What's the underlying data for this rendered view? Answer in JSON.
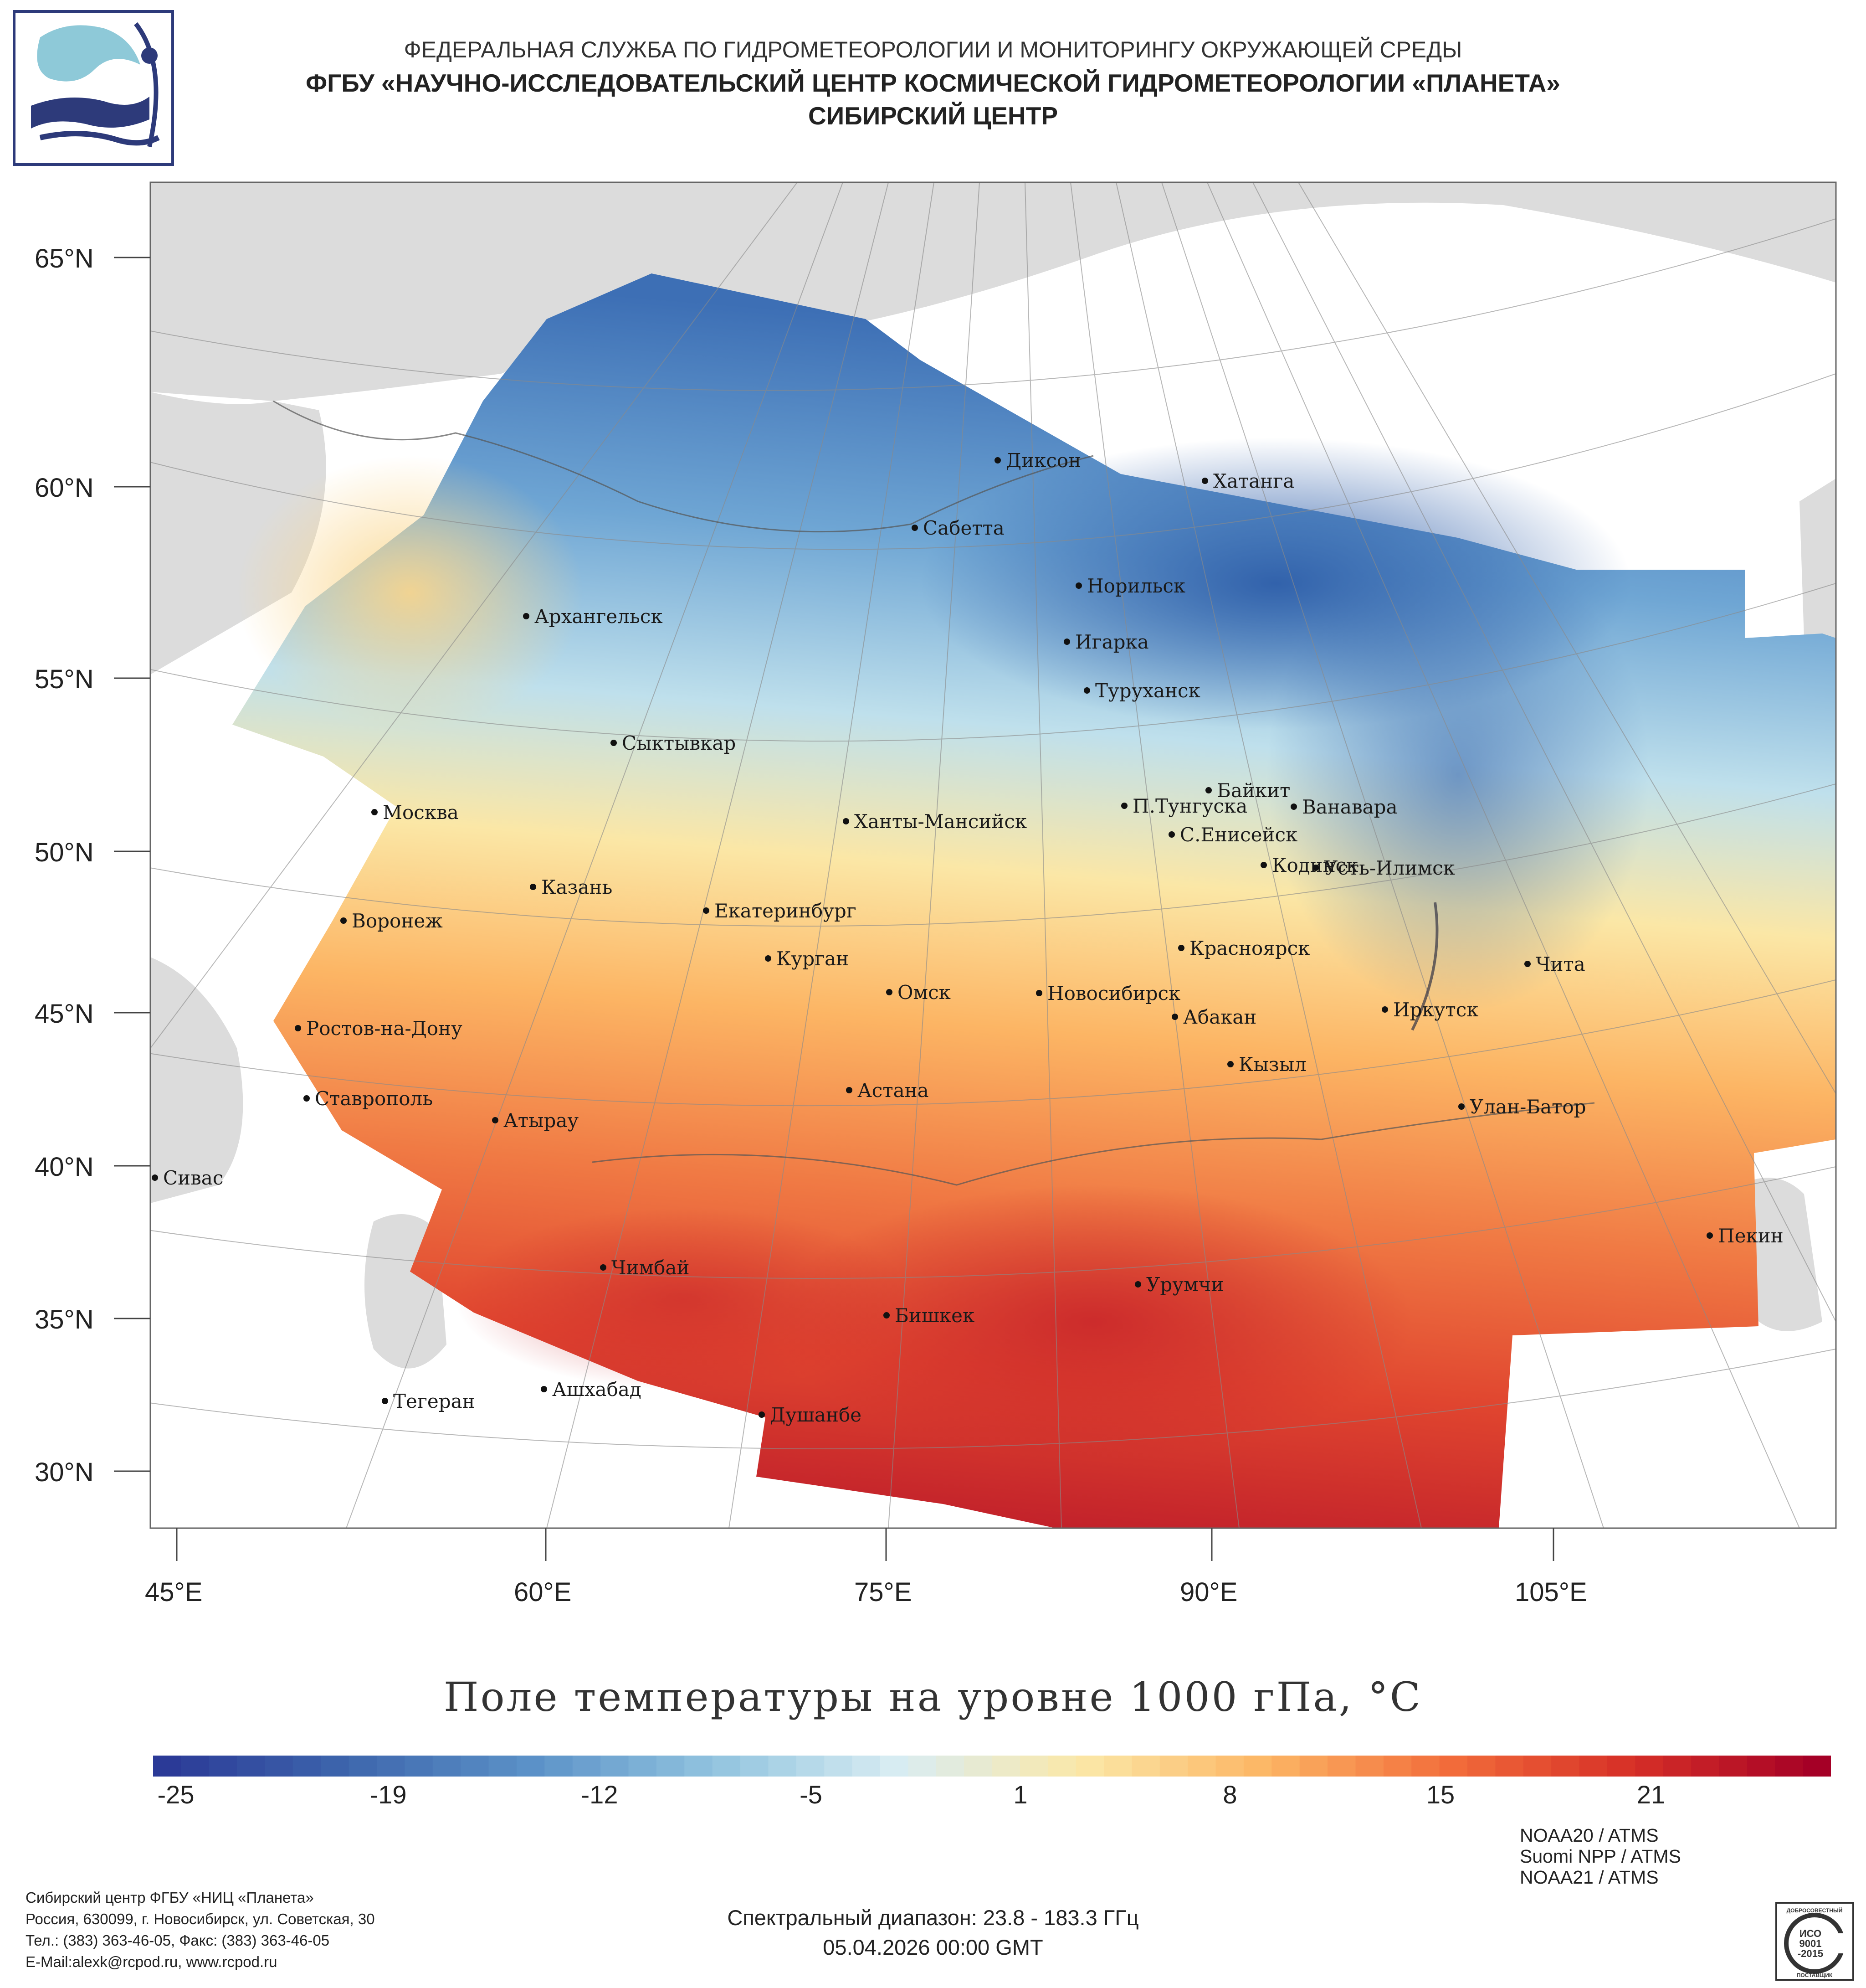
{
  "header": {
    "line1": "ФЕДЕРАЛЬНАЯ СЛУЖБА ПО ГИДРОМЕТЕОРОЛОГИИ И МОНИТОРИНГУ ОКРУЖАЮЩЕЙ СРЕДЫ",
    "line2": "ФГБУ «НАУЧНО-ИССЛЕДОВАТЕЛЬСКИЙ ЦЕНТР КОСМИЧЕСКОЙ ГИДРОМЕТЕОРОЛОГИИ «ПЛАНЕТА»",
    "line3": "СИБИРСКИЙ ЦЕНТР"
  },
  "map": {
    "lat_labels": [
      "65°N",
      "60°N",
      "55°N",
      "50°N",
      "45°N",
      "40°N",
      "35°N",
      "30°N"
    ],
    "lon_labels": [
      "45°E",
      "60°E",
      "75°E",
      "90°E",
      "105°E"
    ],
    "cities": [
      {
        "name": "Диксон"
      },
      {
        "name": "Хатанга"
      },
      {
        "name": "Сабетта"
      },
      {
        "name": "Норильск"
      },
      {
        "name": "Игарка"
      },
      {
        "name": "Архангельск"
      },
      {
        "name": "Туруханск"
      },
      {
        "name": "Сыктывкар"
      },
      {
        "name": "Байкит"
      },
      {
        "name": "П.Тунгуска"
      },
      {
        "name": "Ванавара"
      },
      {
        "name": "Москва"
      },
      {
        "name": "Ханты-Мансийск"
      },
      {
        "name": "С.Енисейск"
      },
      {
        "name": "Кодинск"
      },
      {
        "name": "Усть-Илимск"
      },
      {
        "name": "Казань"
      },
      {
        "name": "Екатеринбург"
      },
      {
        "name": "Воронеж"
      },
      {
        "name": "Красноярск"
      },
      {
        "name": "Курган"
      },
      {
        "name": "Чита"
      },
      {
        "name": "Омск"
      },
      {
        "name": "Новосибирск"
      },
      {
        "name": "Иркутск"
      },
      {
        "name": "Абакан"
      },
      {
        "name": "Ростов-на-Дону"
      },
      {
        "name": "Кызыл"
      },
      {
        "name": "Ставрополь"
      },
      {
        "name": "Астана"
      },
      {
        "name": "Улан-Батор"
      },
      {
        "name": "Атырау"
      },
      {
        "name": "Сивас"
      },
      {
        "name": "Пекин"
      },
      {
        "name": "Чимбай"
      },
      {
        "name": "Урумчи"
      },
      {
        "name": "Бишкек"
      },
      {
        "name": "Ашхабад"
      },
      {
        "name": "Тегеран"
      },
      {
        "name": "Душанбе"
      }
    ]
  },
  "product_title": "Поле температуры на уровне 1000 гПа, °С",
  "colorbar": {
    "ticks": [
      "-25",
      "-19",
      "-12",
      "-5",
      "1",
      "8",
      "15",
      "21"
    ],
    "colors": [
      "#2b3a97",
      "#3e67ad",
      "#5c92c8",
      "#92c4df",
      "#d9edf3",
      "#fbe7a6",
      "#fcb564",
      "#f26c3a",
      "#d62f27",
      "#a50026"
    ]
  },
  "footer": {
    "address": [
      "Сибирский центр ФГБУ «НИЦ «Планета»",
      "Россия, 630099, г. Новосибирск, ул. Советская, 30",
      "Тел.: (383) 363-46-05, Факс: (383) 363-46-05",
      "E-Mail:alexk@rcpod.ru, www.rcpod.ru"
    ],
    "spectral": "Спектральный диапазон: 23.8 - 183.3 ГГц",
    "datetime": "05.04.2026 00:00 GMT",
    "satellites": [
      "NOAA20 / ATMS",
      "Suomi NPP / ATMS",
      "NOAA21 / ATMS"
    ],
    "iso_lines": [
      "ДОБРОСОВЕСТНЫЙ",
      "ИСО",
      "9001",
      "-2015",
      "ПОСТАВЩИК"
    ]
  }
}
